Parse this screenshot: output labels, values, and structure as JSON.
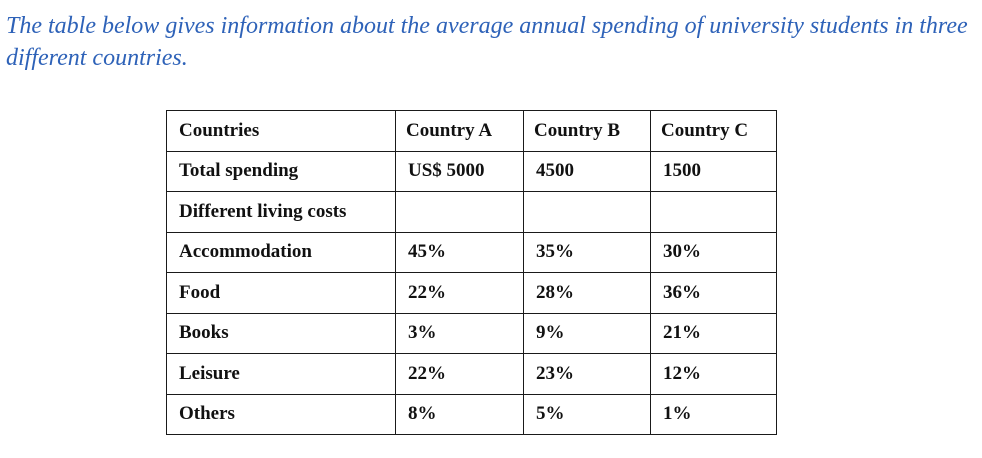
{
  "intro_text": "The table below gives information about the average annual spending of university students in three different countries.",
  "chart_data": {
    "type": "table",
    "columns": [
      "Countries",
      "Country A",
      "Country B",
      "Country C"
    ],
    "rows": [
      {
        "label": "Total spending",
        "values": [
          "US$ 5000",
          "4500",
          "1500"
        ]
      },
      {
        "label": "Different living costs",
        "values": [
          "",
          "",
          ""
        ]
      },
      {
        "label": "Accommodation",
        "values": [
          "45%",
          "35%",
          "30%"
        ]
      },
      {
        "label": "Food",
        "values": [
          "22%",
          "28%",
          "36%"
        ]
      },
      {
        "label": "Books",
        "values": [
          "3%",
          "9%",
          "21%"
        ]
      },
      {
        "label": "Leisure",
        "values": [
          "22%",
          "23%",
          "12%"
        ]
      },
      {
        "label": "Others",
        "values": [
          "8%",
          "5%",
          "1%"
        ]
      }
    ]
  }
}
